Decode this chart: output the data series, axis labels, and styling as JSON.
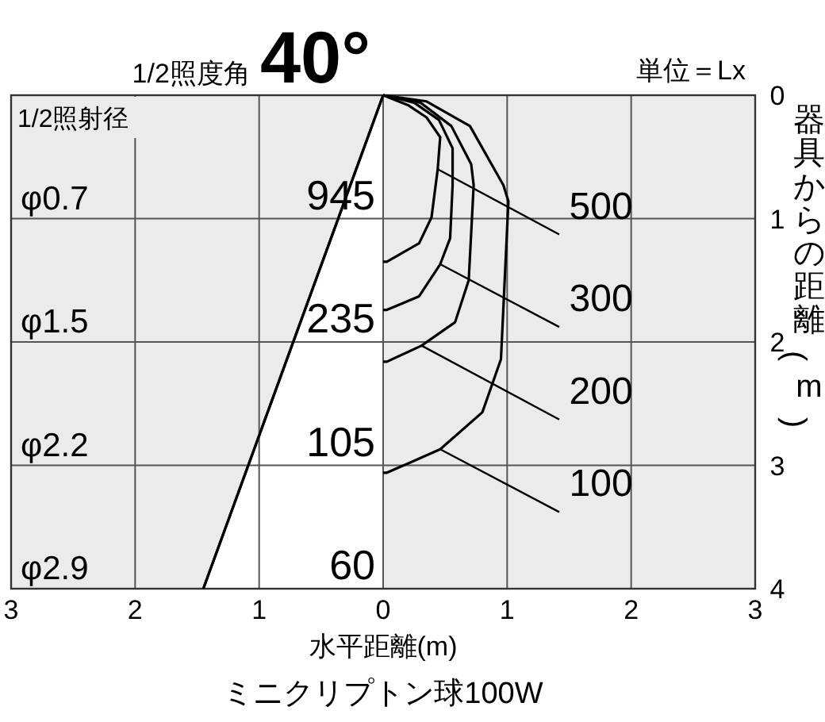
{
  "chart_data": {
    "type": "line",
    "title": "1/2照度角",
    "subtitle": "40°",
    "xlabel": "水平距離(m)",
    "ylabel": "器具からの距離(m)",
    "xlim": [
      -3,
      3
    ],
    "xticks": [
      {
        "value": -3,
        "label": "3"
      },
      {
        "value": -2,
        "label": "2"
      },
      {
        "value": -1,
        "label": "1"
      },
      0,
      1,
      2,
      3
    ],
    "ylim": [
      4,
      0
    ],
    "yticks": [
      0,
      1,
      2,
      3,
      4
    ],
    "grid": true,
    "legend": "right",
    "series": [
      {
        "type": "area",
        "color": "#ffffff",
        "x": [
          0,
          -1.45
        ],
        "values": [
          0,
          4
        ]
      },
      {
        "name": "500",
        "color": "#000000",
        "x": [
          0,
          0.2,
          0.35,
          0.46,
          0.44,
          0.39,
          0.29,
          0.03,
          0
        ],
        "values": [
          0,
          0.08,
          0.18,
          0.34,
          0.6,
          0.99,
          1.2,
          1.35,
          1.35
        ]
      },
      {
        "name": "300",
        "color": "#000000",
        "x": [
          0,
          0.25,
          0.45,
          0.56,
          0.56,
          0.54,
          0.46,
          0.29,
          0.03,
          0
        ],
        "values": [
          0,
          0.06,
          0.2,
          0.43,
          0.73,
          1.16,
          1.37,
          1.63,
          1.74,
          1.74
        ]
      },
      {
        "name": "200",
        "color": "#000000",
        "x": [
          0,
          0.3,
          0.55,
          0.71,
          0.73,
          0.69,
          0.58,
          0.31,
          0.03,
          0
        ],
        "values": [
          0,
          0.06,
          0.25,
          0.56,
          0.73,
          1.5,
          1.84,
          2.03,
          2.16,
          2.16
        ]
      },
      {
        "name": "100",
        "color": "#000000",
        "x": [
          0,
          0.35,
          0.7,
          0.97,
          1.01,
          0.99,
          0.95,
          0.8,
          0.46,
          0.03,
          0
        ],
        "values": [
          0,
          0.05,
          0.25,
          0.73,
          0.86,
          1.29,
          2.14,
          2.57,
          2.87,
          3.06,
          3.06
        ]
      }
    ],
    "annotations": [
      "単位＝Lx",
      "1/2照射径",
      "ミニクリプトン球100W",
      "φ0.7",
      "φ1.5",
      "φ2.2",
      "φ2.9",
      "945",
      "235",
      "105",
      "60"
    ]
  }
}
